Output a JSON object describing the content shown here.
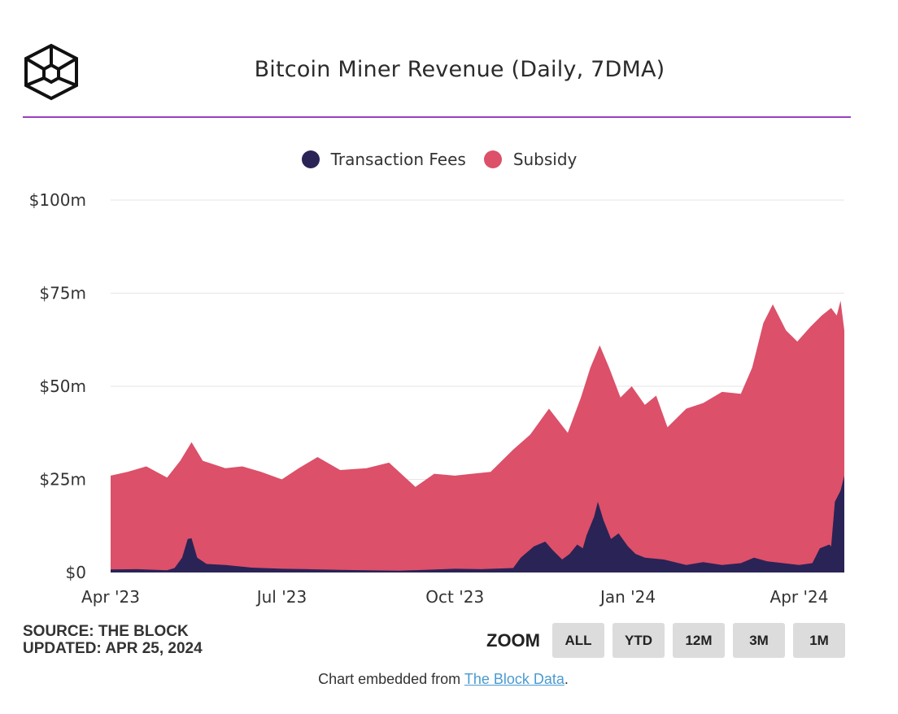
{
  "header": {
    "title": "Bitcoin Miner Revenue (Daily, 7DMA)",
    "logo_icon": "the-block-cube-logo-icon"
  },
  "colors": {
    "accent_rule": "#9b3fbf",
    "fees": "#2a2356",
    "subsidy": "#dc5069",
    "grid": "#e6e6e6",
    "text": "#333333",
    "button_bg": "#dcdcdc"
  },
  "legend": {
    "items": [
      {
        "label": "Transaction Fees",
        "color": "#2a2356"
      },
      {
        "label": "Subsidy",
        "color": "#dc5069"
      }
    ],
    "placement": "top-center"
  },
  "footer": {
    "source": "SOURCE: THE BLOCK",
    "updated": "UPDATED: APR 25, 2024",
    "embed_prefix": "Chart embedded from ",
    "embed_link": "The Block Data",
    "embed_suffix": "."
  },
  "zoom": {
    "label": "ZOOM",
    "buttons": [
      "ALL",
      "YTD",
      "12M",
      "3M",
      "1M"
    ]
  },
  "chart_data": {
    "type": "area",
    "stacked": true,
    "ylim": [
      0,
      100
    ],
    "y_unit": "millions USD",
    "y_ticks": [
      {
        "value": 0,
        "label": "$0"
      },
      {
        "value": 25,
        "label": "$25m"
      },
      {
        "value": 50,
        "label": "$50m"
      },
      {
        "value": 75,
        "label": "$75m"
      },
      {
        "value": 100,
        "label": "$100m"
      }
    ],
    "x_ticks": [
      {
        "date": "2023-04-01",
        "label": "Apr '23"
      },
      {
        "date": "2023-07-01",
        "label": "Jul '23"
      },
      {
        "date": "2023-10-01",
        "label": "Oct '23"
      },
      {
        "date": "2024-01-01",
        "label": "Jan '24"
      },
      {
        "date": "2024-04-01",
        "label": "Apr '24"
      }
    ],
    "xlim": [
      "2023-04-01",
      "2024-04-25"
    ],
    "grid": true,
    "series": [
      {
        "name": "Transaction Fees",
        "color": "#2a2356",
        "points": [
          [
            "2023-04-01",
            0.8
          ],
          [
            "2023-04-15",
            0.9
          ],
          [
            "2023-05-01",
            0.6
          ],
          [
            "2023-05-05",
            1.2
          ],
          [
            "2023-05-09",
            4.0
          ],
          [
            "2023-05-12",
            9.0
          ],
          [
            "2023-05-14",
            9.2
          ],
          [
            "2023-05-17",
            4.0
          ],
          [
            "2023-05-22",
            2.3
          ],
          [
            "2023-06-01",
            2.0
          ],
          [
            "2023-06-15",
            1.3
          ],
          [
            "2023-07-01",
            1.0
          ],
          [
            "2023-07-15",
            0.9
          ],
          [
            "2023-08-01",
            0.7
          ],
          [
            "2023-08-15",
            0.6
          ],
          [
            "2023-09-01",
            0.5
          ],
          [
            "2023-09-15",
            0.7
          ],
          [
            "2023-10-01",
            1.0
          ],
          [
            "2023-10-15",
            0.9
          ],
          [
            "2023-11-01",
            1.2
          ],
          [
            "2023-11-05",
            4.0
          ],
          [
            "2023-11-12",
            7.0
          ],
          [
            "2023-11-18",
            8.3
          ],
          [
            "2023-11-22",
            6.0
          ],
          [
            "2023-11-27",
            3.5
          ],
          [
            "2023-12-01",
            5.0
          ],
          [
            "2023-12-05",
            7.5
          ],
          [
            "2023-12-08",
            6.5
          ],
          [
            "2023-12-10",
            10.0
          ],
          [
            "2023-12-14",
            15.0
          ],
          [
            "2023-12-16",
            19.0
          ],
          [
            "2023-12-19",
            14.0
          ],
          [
            "2023-12-23",
            9.0
          ],
          [
            "2023-12-27",
            10.5
          ],
          [
            "2024-01-01",
            7.0
          ],
          [
            "2024-01-05",
            5.0
          ],
          [
            "2024-01-10",
            4.0
          ],
          [
            "2024-01-20",
            3.5
          ],
          [
            "2024-02-01",
            2.0
          ],
          [
            "2024-02-10",
            2.8
          ],
          [
            "2024-02-20",
            2.0
          ],
          [
            "2024-03-01",
            2.5
          ],
          [
            "2024-03-08",
            4.0
          ],
          [
            "2024-03-15",
            3.0
          ],
          [
            "2024-04-01",
            2.0
          ],
          [
            "2024-04-08",
            2.5
          ],
          [
            "2024-04-12",
            6.5
          ],
          [
            "2024-04-17",
            7.5
          ],
          [
            "2024-04-18",
            7.0
          ],
          [
            "2024-04-20",
            19.0
          ],
          [
            "2024-04-23",
            22.0
          ],
          [
            "2024-04-25",
            26.0
          ]
        ]
      },
      {
        "name": "Subsidy",
        "color": "#dc5069",
        "total_points": [
          [
            "2023-04-01",
            26.0
          ],
          [
            "2023-04-10",
            27.0
          ],
          [
            "2023-04-20",
            28.5
          ],
          [
            "2023-05-01",
            25.5
          ],
          [
            "2023-05-08",
            30.0
          ],
          [
            "2023-05-14",
            35.0
          ],
          [
            "2023-05-20",
            30.0
          ],
          [
            "2023-06-01",
            28.0
          ],
          [
            "2023-06-10",
            28.5
          ],
          [
            "2023-06-20",
            27.0
          ],
          [
            "2023-07-01",
            25.0
          ],
          [
            "2023-07-10",
            28.0
          ],
          [
            "2023-07-20",
            31.0
          ],
          [
            "2023-08-01",
            27.5
          ],
          [
            "2023-08-15",
            28.0
          ],
          [
            "2023-08-27",
            29.5
          ],
          [
            "2023-09-10",
            23.0
          ],
          [
            "2023-09-20",
            26.5
          ],
          [
            "2023-10-01",
            26.0
          ],
          [
            "2023-10-10",
            26.5
          ],
          [
            "2023-10-20",
            27.0
          ],
          [
            "2023-11-01",
            33.0
          ],
          [
            "2023-11-10",
            37.0
          ],
          [
            "2023-11-20",
            44.0
          ],
          [
            "2023-11-30",
            37.5
          ],
          [
            "2023-12-07",
            47.0
          ],
          [
            "2023-12-12",
            55.0
          ],
          [
            "2023-12-17",
            61.0
          ],
          [
            "2023-12-22",
            55.0
          ],
          [
            "2023-12-28",
            47.0
          ],
          [
            "2024-01-03",
            50.0
          ],
          [
            "2024-01-10",
            45.0
          ],
          [
            "2024-01-16",
            47.5
          ],
          [
            "2024-01-22",
            39.0
          ],
          [
            "2024-02-01",
            44.0
          ],
          [
            "2024-02-10",
            45.5
          ],
          [
            "2024-02-20",
            48.5
          ],
          [
            "2024-03-01",
            48.0
          ],
          [
            "2024-03-07",
            55.0
          ],
          [
            "2024-03-13",
            67.0
          ],
          [
            "2024-03-18",
            72.0
          ],
          [
            "2024-03-25",
            65.0
          ],
          [
            "2024-03-31",
            62.0
          ],
          [
            "2024-04-07",
            66.0
          ],
          [
            "2024-04-13",
            69.0
          ],
          [
            "2024-04-18",
            71.0
          ],
          [
            "2024-04-21",
            69.0
          ],
          [
            "2024-04-23",
            73.0
          ],
          [
            "2024-04-25",
            65.0
          ]
        ]
      }
    ]
  }
}
